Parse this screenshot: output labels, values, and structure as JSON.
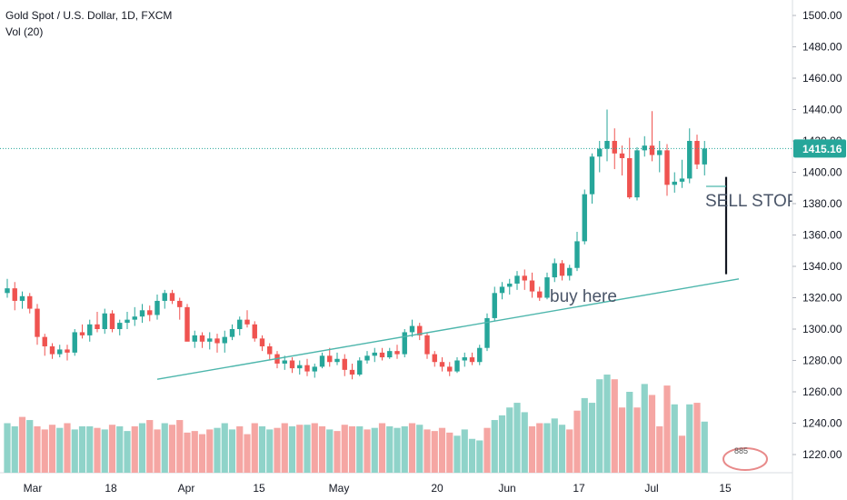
{
  "header": {
    "symbol_line": "Gold Spot / U.S. Dollar, 1D, FXCM",
    "volume_line": "Vol (20)"
  },
  "price_axis": {
    "ticks": [
      "1500.00",
      "1480.00",
      "1460.00",
      "1440.00",
      "1420.00",
      "1400.00",
      "1380.00",
      "1360.00",
      "1340.00",
      "1320.00",
      "1300.00",
      "1280.00",
      "1260.00",
      "1240.00",
      "1220.00"
    ],
    "last_price_label": "1415.16"
  },
  "time_axis": {
    "labels": [
      "Mar",
      "18",
      "Apr",
      "15",
      "May",
      "20",
      "Jun",
      "17",
      "Jul",
      "15"
    ]
  },
  "annotations": {
    "buy_text": "buy here",
    "sell_text": "SELL STOP",
    "watermark_text": "885"
  },
  "colors": {
    "up": "#26a69a",
    "down": "#ef5350",
    "up_volume": "#8fd3c9",
    "down_volume": "#f5a6a3",
    "last_price": "#26a69a",
    "trendline": "#4db6ac",
    "sell_line": "#131722"
  },
  "chart_data": {
    "type": "candlestick",
    "title": "Gold Spot / U.S. Dollar, 1D, FXCM",
    "ylim": [
      1210,
      1510
    ],
    "last_price": 1415.16,
    "candles": [
      [
        1323,
        1332,
        1320,
        1326
      ],
      [
        1326,
        1330,
        1312,
        1318
      ],
      [
        1318,
        1324,
        1313,
        1321
      ],
      [
        1321,
        1323,
        1310,
        1313
      ],
      [
        1313,
        1316,
        1290,
        1295
      ],
      [
        1295,
        1297,
        1283,
        1289
      ],
      [
        1289,
        1291,
        1281,
        1284
      ],
      [
        1284,
        1290,
        1282,
        1287
      ],
      [
        1287,
        1290,
        1280,
        1285
      ],
      [
        1285,
        1300,
        1283,
        1298
      ],
      [
        1298,
        1303,
        1294,
        1296
      ],
      [
        1296,
        1306,
        1292,
        1303
      ],
      [
        1303,
        1311,
        1298,
        1300
      ],
      [
        1300,
        1313,
        1297,
        1310
      ],
      [
        1310,
        1312,
        1298,
        1300
      ],
      [
        1300,
        1306,
        1296,
        1304
      ],
      [
        1304,
        1311,
        1300,
        1306
      ],
      [
        1306,
        1314,
        1302,
        1308
      ],
      [
        1308,
        1316,
        1304,
        1312
      ],
      [
        1312,
        1315,
        1305,
        1309
      ],
      [
        1309,
        1322,
        1306,
        1318
      ],
      [
        1318,
        1325,
        1313,
        1323
      ],
      [
        1323,
        1325,
        1316,
        1318
      ],
      [
        1318,
        1320,
        1306,
        1314
      ],
      [
        1314,
        1316,
        1294,
        1292
      ],
      [
        1292,
        1299,
        1288,
        1296
      ],
      [
        1296,
        1298,
        1288,
        1292
      ],
      [
        1292,
        1298,
        1287,
        1294
      ],
      [
        1294,
        1297,
        1285,
        1291
      ],
      [
        1291,
        1299,
        1285,
        1295
      ],
      [
        1295,
        1303,
        1293,
        1300
      ],
      [
        1300,
        1308,
        1296,
        1306
      ],
      [
        1306,
        1312,
        1301,
        1303
      ],
      [
        1303,
        1305,
        1292,
        1294
      ],
      [
        1294,
        1296,
        1286,
        1289
      ],
      [
        1289,
        1291,
        1280,
        1284
      ],
      [
        1284,
        1286,
        1275,
        1278
      ],
      [
        1278,
        1283,
        1274,
        1280
      ],
      [
        1280,
        1282,
        1272,
        1275
      ],
      [
        1275,
        1280,
        1271,
        1277
      ],
      [
        1277,
        1281,
        1270,
        1273
      ],
      [
        1273,
        1278,
        1269,
        1276
      ],
      [
        1276,
        1285,
        1275,
        1283
      ],
      [
        1283,
        1288,
        1276,
        1279
      ],
      [
        1279,
        1285,
        1277,
        1281
      ],
      [
        1281,
        1284,
        1270,
        1274
      ],
      [
        1274,
        1278,
        1268,
        1271
      ],
      [
        1271,
        1282,
        1270,
        1280
      ],
      [
        1280,
        1286,
        1278,
        1283
      ],
      [
        1283,
        1288,
        1279,
        1285
      ],
      [
        1285,
        1288,
        1280,
        1282
      ],
      [
        1282,
        1288,
        1281,
        1286
      ],
      [
        1286,
        1290,
        1281,
        1284
      ],
      [
        1284,
        1300,
        1282,
        1298
      ],
      [
        1298,
        1306,
        1295,
        1302
      ],
      [
        1302,
        1304,
        1293,
        1296
      ],
      [
        1296,
        1298,
        1281,
        1284
      ],
      [
        1284,
        1286,
        1276,
        1279
      ],
      [
        1279,
        1282,
        1273,
        1276
      ],
      [
        1276,
        1279,
        1270,
        1273
      ],
      [
        1273,
        1282,
        1272,
        1280
      ],
      [
        1280,
        1285,
        1276,
        1282
      ],
      [
        1282,
        1285,
        1277,
        1279
      ],
      [
        1279,
        1290,
        1277,
        1288
      ],
      [
        1288,
        1310,
        1286,
        1307
      ],
      [
        1307,
        1327,
        1305,
        1323
      ],
      [
        1323,
        1330,
        1319,
        1327
      ],
      [
        1327,
        1332,
        1322,
        1329
      ],
      [
        1329,
        1337,
        1325,
        1334
      ],
      [
        1334,
        1338,
        1325,
        1331
      ],
      [
        1331,
        1336,
        1320,
        1324
      ],
      [
        1324,
        1327,
        1318,
        1320
      ],
      [
        1320,
        1336,
        1319,
        1333
      ],
      [
        1333,
        1345,
        1330,
        1342
      ],
      [
        1342,
        1344,
        1331,
        1334
      ],
      [
        1334,
        1341,
        1331,
        1339
      ],
      [
        1339,
        1362,
        1337,
        1356
      ],
      [
        1356,
        1389,
        1354,
        1386
      ],
      [
        1386,
        1412,
        1380,
        1410
      ],
      [
        1410,
        1420,
        1400,
        1415
      ],
      [
        1415,
        1440,
        1407,
        1420
      ],
      [
        1420,
        1428,
        1402,
        1412
      ],
      [
        1412,
        1417,
        1398,
        1409
      ],
      [
        1409,
        1422,
        1383,
        1384
      ],
      [
        1384,
        1416,
        1382,
        1414
      ],
      [
        1414,
        1423,
        1410,
        1417
      ],
      [
        1417,
        1439,
        1407,
        1411
      ],
      [
        1411,
        1420,
        1400,
        1414
      ],
      [
        1414,
        1418,
        1385,
        1392
      ],
      [
        1392,
        1400,
        1387,
        1394
      ],
      [
        1394,
        1408,
        1390,
        1396
      ],
      [
        1396,
        1428,
        1393,
        1420
      ],
      [
        1420,
        1424,
        1402,
        1405
      ],
      [
        1405,
        1420,
        1398,
        1415.16
      ]
    ],
    "volume": [
      [
        1240,
        0
      ],
      [
        1238,
        0
      ],
      [
        1244,
        1
      ],
      [
        1242,
        0
      ],
      [
        1238,
        1
      ],
      [
        1236,
        1
      ],
      [
        1239,
        1
      ],
      [
        1237,
        0
      ],
      [
        1240,
        1
      ],
      [
        1236,
        0
      ],
      [
        1238,
        0
      ],
      [
        1238,
        0
      ],
      [
        1237,
        1
      ],
      [
        1236,
        0
      ],
      [
        1239,
        1
      ],
      [
        1238,
        0
      ],
      [
        1235,
        0
      ],
      [
        1238,
        1
      ],
      [
        1240,
        0
      ],
      [
        1242,
        1
      ],
      [
        1236,
        1
      ],
      [
        1240,
        0
      ],
      [
        1239,
        1
      ],
      [
        1242,
        1
      ],
      [
        1234,
        1
      ],
      [
        1235,
        1
      ],
      [
        1233,
        1
      ],
      [
        1236,
        1
      ],
      [
        1237,
        0
      ],
      [
        1240,
        0
      ],
      [
        1236,
        0
      ],
      [
        1238,
        1
      ],
      [
        1233,
        1
      ],
      [
        1240,
        1
      ],
      [
        1238,
        0
      ],
      [
        1236,
        0
      ],
      [
        1237,
        1
      ],
      [
        1240,
        1
      ],
      [
        1238,
        0
      ],
      [
        1239,
        1
      ],
      [
        1239,
        0
      ],
      [
        1240,
        1
      ],
      [
        1238,
        1
      ],
      [
        1236,
        0
      ],
      [
        1235,
        1
      ],
      [
        1239,
        1
      ],
      [
        1238,
        1
      ],
      [
        1238,
        0
      ],
      [
        1236,
        1
      ],
      [
        1237,
        0
      ],
      [
        1240,
        1
      ],
      [
        1238,
        0
      ],
      [
        1237,
        0
      ],
      [
        1238,
        0
      ],
      [
        1240,
        1
      ],
      [
        1239,
        0
      ],
      [
        1236,
        1
      ],
      [
        1235,
        1
      ],
      [
        1237,
        1
      ],
      [
        1234,
        1
      ],
      [
        1232,
        0
      ],
      [
        1236,
        0
      ],
      [
        1230,
        0
      ],
      [
        1229,
        0
      ],
      [
        1237,
        1
      ],
      [
        1242,
        0
      ],
      [
        1245,
        0
      ],
      [
        1250,
        0
      ],
      [
        1253,
        0
      ],
      [
        1247,
        0
      ],
      [
        1238,
        1
      ],
      [
        1240,
        1
      ],
      [
        1240,
        0
      ],
      [
        1243,
        0
      ],
      [
        1239,
        0
      ],
      [
        1236,
        1
      ],
      [
        1248,
        1
      ],
      [
        1256,
        0
      ],
      [
        1253,
        0
      ],
      [
        1268,
        0
      ],
      [
        1271,
        0
      ],
      [
        1268,
        1
      ],
      [
        1250,
        1
      ],
      [
        1260,
        0
      ],
      [
        1250,
        1
      ],
      [
        1265,
        0
      ],
      [
        1258,
        1
      ],
      [
        1238,
        1
      ],
      [
        1264,
        1
      ],
      [
        1252,
        0
      ],
      [
        1232,
        1
      ],
      [
        1252,
        0
      ],
      [
        1253,
        1
      ],
      [
        1241,
        0
      ]
    ],
    "trendline": [
      [
        20,
        1268
      ],
      [
        100,
        1332
      ]
    ],
    "sell_stop_segment": {
      "index": 96,
      "from": 1397,
      "to": 1335
    }
  }
}
